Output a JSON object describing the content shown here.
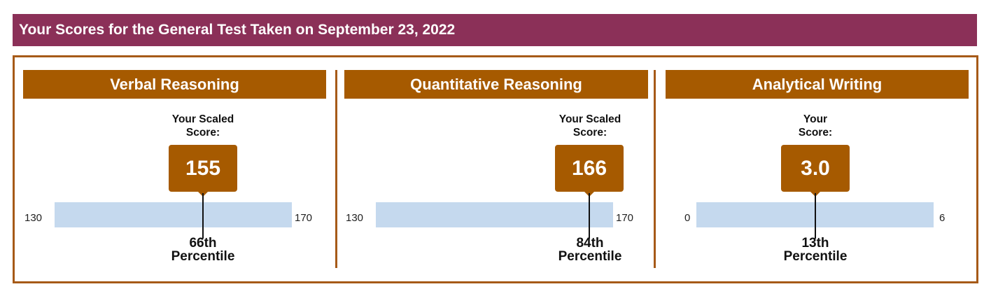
{
  "header": {
    "title": "Your Scores for the General Test Taken on September 23, 2022"
  },
  "sections": [
    {
      "title": "Verbal Reasoning",
      "caption_line1": "Your Scaled",
      "caption_line2": "Score:",
      "score": "155",
      "min": "130",
      "max": "170",
      "percentile_line1": "66th",
      "percentile_line2": "Percentile",
      "fraction": 0.625
    },
    {
      "title": "Quantitative Reasoning",
      "caption_line1": "Your Scaled",
      "caption_line2": "Score:",
      "score": "166",
      "min": "130",
      "max": "170",
      "percentile_line1": "84th",
      "percentile_line2": "Percentile",
      "fraction": 0.9
    },
    {
      "title": "Analytical Writing",
      "caption_line1": "Your",
      "caption_line2": "Score:",
      "score": "3.0",
      "min": "0",
      "max": "6",
      "percentile_line1": "13th",
      "percentile_line2": "Percentile",
      "fraction": 0.5
    }
  ],
  "colors": {
    "header_bg": "#8b3058",
    "accent": "#a65a00",
    "bar": "#c5d9ee"
  }
}
